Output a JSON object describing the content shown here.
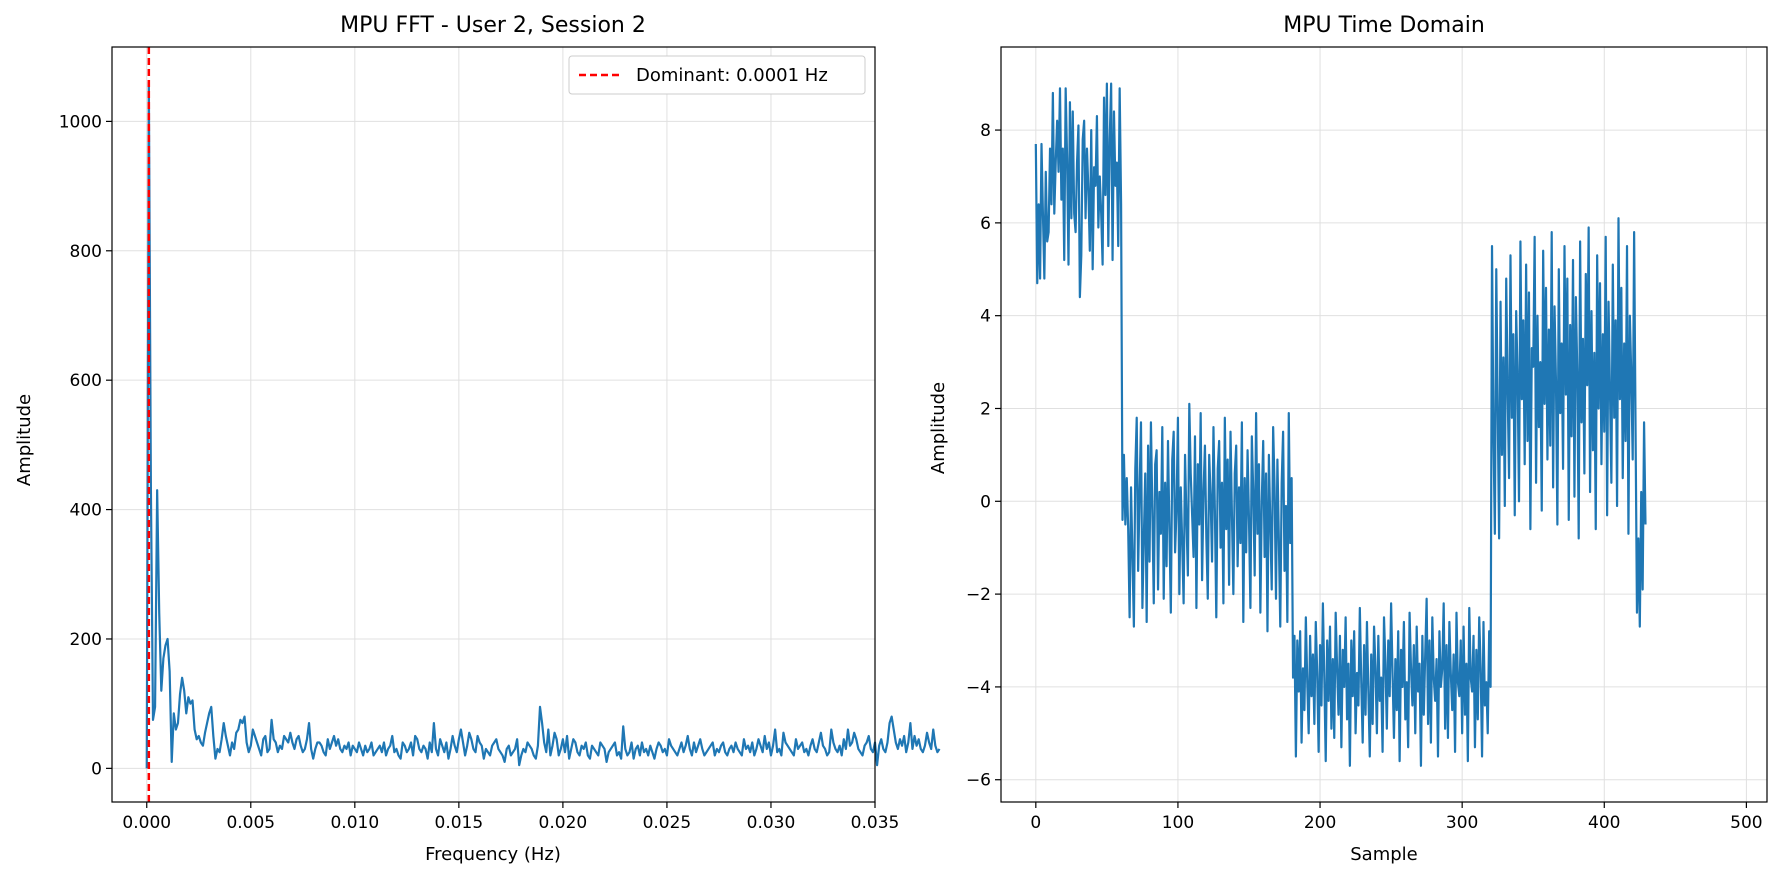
{
  "chart_data": [
    {
      "type": "line",
      "title": "MPU FFT - User 2, Session 2",
      "xlabel": "Frequency (Hz)",
      "ylabel": "Amplitude",
      "xlim": [
        -0.00167,
        0.035
      ],
      "ylim": [
        -52,
        1115
      ],
      "xticks": [
        "0.000",
        "0.005",
        "0.010",
        "0.015",
        "0.020",
        "0.025",
        "0.030",
        "0.035"
      ],
      "yticks": [
        "0",
        "200",
        "400",
        "600",
        "800",
        "1000"
      ],
      "grid": true,
      "legend": {
        "placement": "top-right",
        "entries": [
          "Dominant: 0.0001 Hz"
        ]
      },
      "dominant_line": {
        "x": 0.0001,
        "style": "dashed",
        "color": "#ff0000"
      },
      "series": [
        {
          "color": "#1f77b4",
          "x_start": 0.0,
          "x_step": 0.0001,
          "values": [
            0,
            1060,
            430,
            75,
            95,
            430,
            240,
            120,
            170,
            190,
            200,
            150,
            10,
            85,
            60,
            70,
            115,
            140,
            120,
            85,
            110,
            100,
            105,
            60,
            45,
            50,
            40,
            35,
            55,
            70,
            85,
            95,
            50,
            15,
            30,
            25,
            45,
            70,
            50,
            35,
            20,
            40,
            30,
            55,
            60,
            75,
            70,
            80,
            40,
            25,
            35,
            60,
            50,
            40,
            30,
            20,
            45,
            50,
            25,
            30,
            75,
            45,
            40,
            25,
            35,
            30,
            50,
            45,
            40,
            55,
            40,
            30,
            45,
            50,
            35,
            25,
            30,
            45,
            70,
            30,
            15,
            30,
            40,
            40,
            35,
            25,
            20,
            45,
            30,
            40,
            50,
            35,
            45,
            30,
            25,
            35,
            30,
            40,
            20,
            35,
            30,
            25,
            40,
            30,
            20,
            35,
            25,
            30,
            40,
            20,
            25,
            30,
            35,
            25,
            40,
            20,
            30,
            35,
            50,
            25,
            30,
            20,
            15,
            40,
            35,
            25,
            30,
            40,
            20,
            50,
            45,
            30,
            25,
            35,
            30,
            15,
            40,
            25,
            70,
            30,
            20,
            45,
            35,
            25,
            40,
            15,
            30,
            50,
            35,
            25,
            45,
            60,
            40,
            20,
            35,
            55,
            45,
            30,
            25,
            50,
            40,
            35,
            15,
            30,
            25,
            20,
            35,
            40,
            45,
            30,
            25,
            20,
            10,
            30,
            35,
            20,
            25,
            30,
            45,
            5,
            20,
            30,
            25,
            40,
            35,
            30,
            20,
            15,
            35,
            95,
            70,
            40,
            25,
            60,
            20,
            35,
            55,
            45,
            20,
            30,
            45,
            25,
            50,
            15,
            30,
            45,
            40,
            25,
            20,
            35,
            30,
            40,
            20,
            15,
            35,
            30,
            25,
            20,
            40,
            35,
            30,
            10,
            25,
            30,
            35,
            40,
            20,
            25,
            15,
            65,
            30,
            20,
            25,
            40,
            15,
            30,
            35,
            20,
            40,
            25,
            30,
            20,
            35,
            25,
            15,
            30,
            40,
            35,
            25,
            30,
            20,
            45,
            35,
            30,
            25,
            20,
            30,
            40,
            25,
            35,
            50,
            30,
            20,
            40,
            25,
            35,
            45,
            30,
            20,
            25,
            30,
            35,
            40,
            20,
            30,
            25,
            35,
            40,
            25,
            20,
            30,
            35,
            25,
            40,
            30,
            25,
            20,
            45,
            30,
            35,
            25,
            40,
            20,
            30,
            45,
            35,
            25,
            50,
            30,
            40,
            20,
            35,
            60,
            25,
            30,
            20,
            55,
            40,
            35,
            30,
            25,
            20,
            45,
            30,
            35,
            40,
            25,
            30,
            20,
            35,
            45,
            30,
            25,
            40,
            55,
            35,
            30,
            20,
            25,
            60,
            40,
            30,
            25,
            35,
            20,
            45,
            30,
            60,
            35,
            40,
            55,
            45,
            30,
            25,
            20,
            35,
            40,
            50,
            30,
            25,
            40,
            5,
            35,
            45,
            30,
            25,
            40,
            70,
            80,
            60,
            40,
            30,
            45,
            35,
            50,
            25,
            40,
            70,
            30,
            50,
            35,
            45,
            30,
            25,
            35,
            55,
            40,
            30,
            60,
            35,
            25,
            30
          ]
        }
      ]
    },
    {
      "type": "line",
      "title": "MPU Time Domain",
      "xlabel": "Sample",
      "ylabel": "Amplitude",
      "xlim": [
        -24.5,
        514.5
      ],
      "ylim": [
        -6.48,
        9.79
      ],
      "xticks": [
        "0",
        "100",
        "200",
        "300",
        "400",
        "500"
      ],
      "yticks": [
        "−6",
        "−4",
        "−2",
        "0",
        "2",
        "4",
        "6",
        "8"
      ],
      "grid": true,
      "series": [
        {
          "color": "#1f77b4",
          "x_start": 0,
          "x_step": 1,
          "values": [
            7.7,
            4.7,
            6.4,
            4.8,
            7.7,
            6.2,
            4.8,
            7.1,
            5.6,
            5.8,
            7.6,
            6.4,
            8.8,
            6.2,
            7.3,
            8.2,
            7.1,
            8.9,
            6.5,
            7.6,
            5.2,
            8.9,
            7.4,
            5.1,
            8.6,
            6.1,
            8.4,
            6.2,
            5.8,
            7.3,
            8.1,
            4.4,
            5.3,
            7.8,
            8.2,
            6.1,
            7.6,
            6.7,
            5.4,
            8.0,
            5.0,
            7.2,
            6.8,
            8.3,
            5.9,
            7.0,
            6.2,
            5.1,
            8.7,
            6.6,
            9.0,
            5.5,
            7.8,
            9.0,
            5.2,
            8.4,
            6.8,
            7.3,
            5.5,
            8.9,
            6.4,
            -0.4,
            1.0,
            -0.5,
            0.5,
            -0.6,
            -2.5,
            0.3,
            -1.2,
            -2.7,
            0.7,
            1.8,
            -1.5,
            0.2,
            1.7,
            -2.3,
            -0.8,
            0.6,
            -2.6,
            1.2,
            -1.3,
            1.7,
            -0.2,
            -2.2,
            0.8,
            1.1,
            -1.9,
            0.2,
            -0.7,
            1.6,
            -2.1,
            0.4,
            -1.4,
            1.3,
            -0.6,
            -2.4,
            0.9,
            1.5,
            -1.1,
            -0.2,
            1.8,
            -2.0,
            0.3,
            -0.9,
            -2.2,
            1.0,
            -0.4,
            -1.6,
            2.1,
            0.6,
            -0.3,
            -1.2,
            1.4,
            -2.3,
            0.8,
            -0.5,
            1.9,
            -1.7,
            0.2,
            1.2,
            -0.8,
            -2.1,
            1.0,
            0.1,
            -1.3,
            1.6,
            -0.2,
            -2.5,
            0.7,
            1.3,
            -1.0,
            0.4,
            -2.2,
            1.8,
            -0.6,
            0.9,
            -1.8,
            1.5,
            -0.3,
            -2.0,
            0.6,
            1.2,
            -1.4,
            0.3,
            -0.9,
            1.7,
            -2.6,
            0.5,
            -1.1,
            1.1,
            -0.4,
            -2.3,
            1.4,
            0.2,
            -1.6,
            1.9,
            -0.7,
            0.8,
            -2.4,
            0.0,
            1.3,
            -1.2,
            0.6,
            -2.8,
            1.0,
            -0.5,
            -1.9,
            1.6,
            0.3,
            -2.1,
            0.9,
            -0.8,
            -2.7,
            0.4,
            1.5,
            -1.5,
            -0.1,
            -2.6,
            1.9,
            -0.9,
            0.5,
            -3.8,
            -2.9,
            -5.5,
            -3.0,
            -4.1,
            -2.8,
            -5.2,
            -3.6,
            -4.5,
            -2.5,
            -3.9,
            -5.0,
            -2.9,
            -4.2,
            -3.3,
            -4.8,
            -2.6,
            -3.7,
            -5.4,
            -3.1,
            -4.4,
            -2.2,
            -3.8,
            -5.6,
            -3.0,
            -4.3,
            -2.7,
            -4.9,
            -3.4,
            -5.1,
            -2.4,
            -3.6,
            -4.6,
            -2.9,
            -5.3,
            -3.2,
            -4.0,
            -2.5,
            -4.7,
            -3.5,
            -5.7,
            -3.0,
            -4.2,
            -2.8,
            -5.0,
            -3.7,
            -4.4,
            -2.3,
            -3.9,
            -5.2,
            -3.1,
            -4.6,
            -2.6,
            -4.1,
            -5.5,
            -3.3,
            -4.8,
            -2.7,
            -3.6,
            -5.0,
            -2.9,
            -4.3,
            -3.8,
            -5.4,
            -2.5,
            -3.5,
            -4.9,
            -3.0,
            -4.2,
            -2.2,
            -3.7,
            -5.1,
            -3.4,
            -4.5,
            -2.8,
            -5.6,
            -3.2,
            -4.0,
            -2.6,
            -4.7,
            -3.9,
            -5.3,
            -2.4,
            -3.6,
            -4.4,
            -3.1,
            -5.0,
            -2.7,
            -4.1,
            -3.5,
            -5.7,
            -2.9,
            -4.6,
            -3.3,
            -2.1,
            -4.8,
            -3.0,
            -5.2,
            -2.5,
            -3.8,
            -4.3,
            -3.4,
            -5.5,
            -2.8,
            -4.0,
            -3.6,
            -2.2,
            -4.9,
            -3.1,
            -5.1,
            -2.6,
            -3.7,
            -4.5,
            -3.3,
            -5.4,
            -2.4,
            -3.9,
            -4.2,
            -3.0,
            -5.0,
            -2.7,
            -4.6,
            -3.5,
            -5.6,
            -2.3,
            -3.8,
            -4.1,
            -2.9,
            -5.3,
            -3.2,
            -4.7,
            -2.5,
            -3.6,
            -5.5,
            -2.6,
            -4.4,
            -3.9,
            -5.0,
            -2.8,
            -4.0,
            5.5,
            1.5,
            -0.7,
            5.0,
            2.0,
            -0.8,
            4.3,
            1.0,
            3.1,
            -0.1,
            4.8,
            2.4,
            0.5,
            5.3,
            1.8,
            3.6,
            -0.3,
            4.1,
            2.7,
            0.0,
            5.6,
            2.2,
            3.9,
            0.8,
            5.1,
            1.3,
            4.5,
            -0.6,
            3.3,
            2.9,
            5.7,
            0.4,
            4.0,
            1.6,
            3.0,
            -0.2,
            5.4,
            2.1,
            4.6,
            0.9,
            3.7,
            1.2,
            5.8,
            0.3,
            4.2,
            2.6,
            -0.5,
            5.0,
            1.9,
            3.4,
            0.7,
            5.5,
            2.3,
            4.8,
            -0.4,
            3.8,
            1.4,
            5.2,
            0.1,
            4.4,
            2.8,
            -0.8,
            5.6,
            1.7,
            3.5,
            0.6,
            4.9,
            2.5,
            5.9,
            0.2,
            4.1,
            1.1,
            3.2,
            -0.6,
            5.3,
            2.0,
            4.7,
            0.8,
            3.6,
            1.5,
            5.7,
            -0.3,
            4.3,
            2.4,
            0.4,
            5.1,
            1.8,
            3.9,
            -0.1,
            6.1,
            2.2,
            4.6,
            0.5,
            3.4,
            1.3,
            5.5,
            -0.7,
            4.0,
            2.7,
            0.9,
            5.8,
            1.6,
            -2.4,
            -0.8,
            -2.7,
            0.2,
            -1.9,
            1.7,
            -0.5
          ]
        }
      ]
    }
  ]
}
